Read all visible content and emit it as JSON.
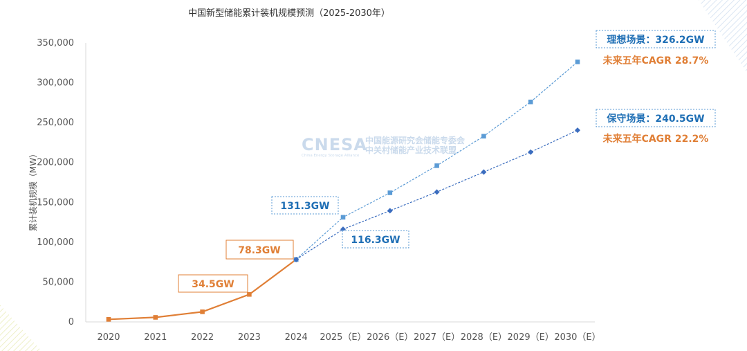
{
  "chart_data": {
    "type": "line",
    "title": "中国新型储能累计装机规模预测（2025-2030年）",
    "ylabel": "累计装机规模（MW）",
    "ylim": [
      0,
      350000
    ],
    "yticks": [
      "0",
      "50,000",
      "100,000",
      "150,000",
      "200,000",
      "250,000",
      "300,000",
      "350,000"
    ],
    "categories": [
      "2020",
      "2021",
      "2022",
      "2023",
      "2024",
      "2025（E）",
      "2026（E）",
      "2027（E）",
      "2028（E）",
      "2029（E）",
      "2030（E）"
    ],
    "series": [
      {
        "key": "history",
        "color": "#e07f36",
        "marker": "square",
        "dash": false,
        "values": [
          3200,
          5700,
          12700,
          34500,
          78300,
          null,
          null,
          null,
          null,
          null,
          null
        ]
      },
      {
        "key": "ideal",
        "color": "#5b9bd5",
        "marker": "square",
        "dash": true,
        "values": [
          null,
          null,
          null,
          null,
          78300,
          131300,
          162000,
          196000,
          233000,
          276000,
          326200
        ]
      },
      {
        "key": "conservative",
        "color": "#3b6dbf",
        "marker": "diamond",
        "dash": true,
        "values": [
          null,
          null,
          null,
          null,
          78300,
          116300,
          139500,
          163000,
          188000,
          213000,
          240500
        ]
      }
    ],
    "annotations": {
      "v2023": "34.5GW",
      "v2024": "78.3GW",
      "ideal2025": "131.3GW",
      "cons2025": "116.3GW",
      "ideal2030": "理想场景：326.2GW",
      "ideal_cagr": "未来五年CAGR 28.7%",
      "cons2030": "保守场景：240.5GW",
      "cons_cagr": "未来五年CAGR 22.2%"
    },
    "grid": false,
    "legend": "none"
  },
  "watermark": {
    "brand": "CNESA",
    "cn_line1": "中国能源研究会储能专委会",
    "cn_line2": "中关村储能产业技术联盟",
    "en": "China Energy Storage Alliance"
  },
  "colors": {
    "orange": "#e07f36",
    "blue_text": "#1f6fb5",
    "light_blue": "#5b9bd5",
    "dark_blue": "#3b6dbf"
  }
}
